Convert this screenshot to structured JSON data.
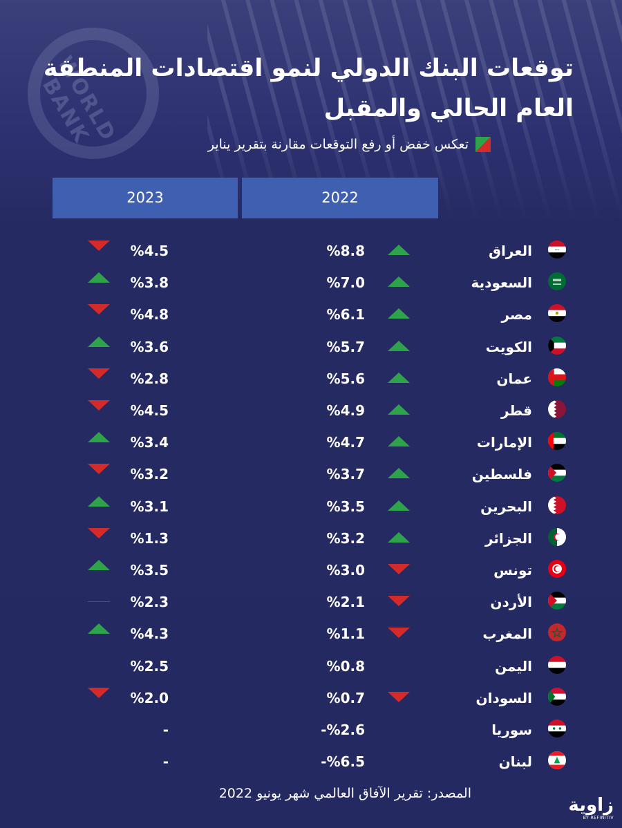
{
  "title": {
    "line1": "توقعات البنك الدولي لنمو اقتصادات المنطقة",
    "line2": "العام الحالي والمقبل"
  },
  "background_logo_text": "WORLD BANK",
  "legend": {
    "text": "تعكس خفض أو رفع التوقعات مقارنة بتقرير يناير",
    "colors": {
      "up": "#2ea34b",
      "down": "#d42a2a"
    }
  },
  "table": {
    "headers": {
      "y2023": "2023",
      "y2022": "2022"
    },
    "header_color": "#3f5fb0",
    "rows": [
      {
        "country": "العراق",
        "flag": "iraq-flag",
        "v2022": "%8.8",
        "t2022": "up",
        "v2023": "%4.5",
        "t2023": "down"
      },
      {
        "country": "السعودية",
        "flag": "saudi-flag",
        "v2022": "%7.0",
        "t2022": "up",
        "v2023": "%3.8",
        "t2023": "up"
      },
      {
        "country": "مصر",
        "flag": "egypt-flag",
        "v2022": "%6.1",
        "t2022": "up",
        "v2023": "%4.8",
        "t2023": "down"
      },
      {
        "country": "الكويت",
        "flag": "kuwait-flag",
        "v2022": "%5.7",
        "t2022": "up",
        "v2023": "%3.6",
        "t2023": "up"
      },
      {
        "country": "عمان",
        "flag": "oman-flag",
        "v2022": "%5.6",
        "t2022": "up",
        "v2023": "%2.8",
        "t2023": "down"
      },
      {
        "country": "قطر",
        "flag": "qatar-flag",
        "v2022": "%4.9",
        "t2022": "up",
        "v2023": "%4.5",
        "t2023": "down"
      },
      {
        "country": "الإمارات",
        "flag": "uae-flag",
        "v2022": "%4.7",
        "t2022": "up",
        "v2023": "%3.4",
        "t2023": "up"
      },
      {
        "country": "فلسطين",
        "flag": "palestine-flag",
        "v2022": "%3.7",
        "t2022": "up",
        "v2023": "%3.2",
        "t2023": "down"
      },
      {
        "country": "البحرين",
        "flag": "bahrain-flag",
        "v2022": "%3.5",
        "t2022": "up",
        "v2023": "%3.1",
        "t2023": "up"
      },
      {
        "country": "الجزائر",
        "flag": "algeria-flag",
        "v2022": "%3.2",
        "t2022": "up",
        "v2023": "%1.3",
        "t2023": "down"
      },
      {
        "country": "تونس",
        "flag": "tunisia-flag",
        "v2022": "%3.0",
        "t2022": "down",
        "v2023": "%3.5",
        "t2023": "up"
      },
      {
        "country": "الأردن",
        "flag": "jordan-flag",
        "v2022": "%2.1",
        "t2022": "down",
        "v2023": "%2.3",
        "t2023": "flat"
      },
      {
        "country": "المغرب",
        "flag": "morocco-flag",
        "v2022": "%1.1",
        "t2022": "down",
        "v2023": "%4.3",
        "t2023": "up"
      },
      {
        "country": "اليمن",
        "flag": "yemen-flag",
        "v2022": "%0.8",
        "t2022": "none",
        "v2023": "%2.5",
        "t2023": "none"
      },
      {
        "country": "السودان",
        "flag": "sudan-flag",
        "v2022": "%0.7",
        "t2022": "down",
        "v2023": "%2.0",
        "t2023": "down"
      },
      {
        "country": "سوريا",
        "flag": "syria-flag",
        "v2022": "-%2.6",
        "t2022": "none",
        "v2023": "-",
        "t2023": "none"
      },
      {
        "country": "لبنان",
        "flag": "lebanon-flag",
        "v2022": "-%6.5",
        "t2022": "none",
        "v2023": "-",
        "t2023": "none"
      }
    ]
  },
  "source": "المصدر: تقرير الآفاق العالمي شهر يونيو 2022",
  "brand": {
    "name": "زاوية",
    "sub": "BY REFINITIV"
  }
}
